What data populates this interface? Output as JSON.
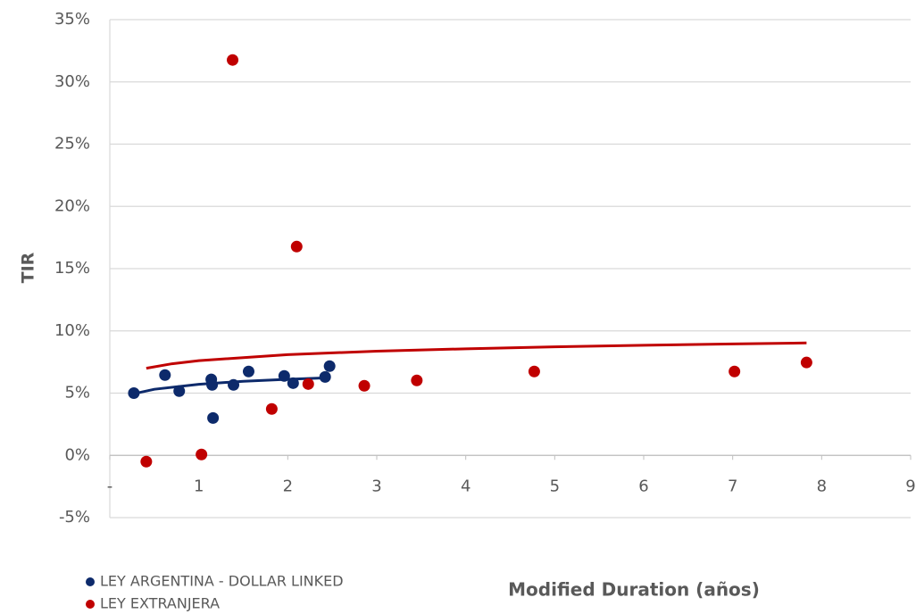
{
  "chart_data": {
    "type": "scatter",
    "xlabel": "Modified Duration (años)",
    "ylabel": "TIR",
    "xlim": [
      0,
      9
    ],
    "ylim": [
      -5,
      35
    ],
    "xticks": [
      {
        "value": 0,
        "label": "-"
      },
      1,
      2,
      3,
      4,
      5,
      6,
      7,
      8,
      9
    ],
    "yticks": [
      {
        "value": -5,
        "label": "-5%"
      },
      {
        "value": 0,
        "label": "0%"
      },
      {
        "value": 5,
        "label": "5%"
      },
      {
        "value": 10,
        "label": "10%"
      },
      {
        "value": 15,
        "label": "15%"
      },
      {
        "value": 20,
        "label": "20%"
      },
      {
        "value": 25,
        "label": "25%"
      },
      {
        "value": 30,
        "label": "30%"
      },
      {
        "value": 35,
        "label": "35%"
      }
    ],
    "grid": true,
    "legend": "bottom-left",
    "series": [
      {
        "name": "LEY ARGENTINA - DOLLAR LINKED",
        "color": "#0d2a6b",
        "x": [
          0.27,
          0.62,
          0.78,
          1.14,
          1.15,
          1.16,
          1.39,
          1.56,
          1.96,
          2.06,
          2.42,
          2.47
        ],
        "values": [
          5.0,
          6.45,
          5.16,
          6.1,
          5.66,
          3.0,
          5.66,
          6.74,
          6.38,
          5.8,
          6.3,
          7.17
        ],
        "trendline": {
          "x": [
            0.27,
            0.5,
            1,
            1.5,
            2,
            2.47
          ],
          "values": [
            4.95,
            5.31,
            5.71,
            5.95,
            6.11,
            6.24
          ]
        }
      },
      {
        "name": "LEY EXTRANJERA",
        "color": "#c00000",
        "x": [
          0.41,
          1.03,
          1.38,
          1.82,
          2.1,
          2.23,
          2.86,
          3.45,
          4.77,
          7.02,
          7.83
        ],
        "values": [
          -0.5,
          0.07,
          31.76,
          3.73,
          16.77,
          5.73,
          5.59,
          6.02,
          6.74,
          6.74,
          7.46
        ],
        "trendline": {
          "x": [
            0.41,
            0.7,
            1,
            2,
            3,
            4,
            5,
            6,
            7,
            7.83
          ],
          "values": [
            7.0,
            7.36,
            7.61,
            8.09,
            8.37,
            8.56,
            8.72,
            8.84,
            8.95,
            9.03
          ]
        }
      }
    ]
  }
}
